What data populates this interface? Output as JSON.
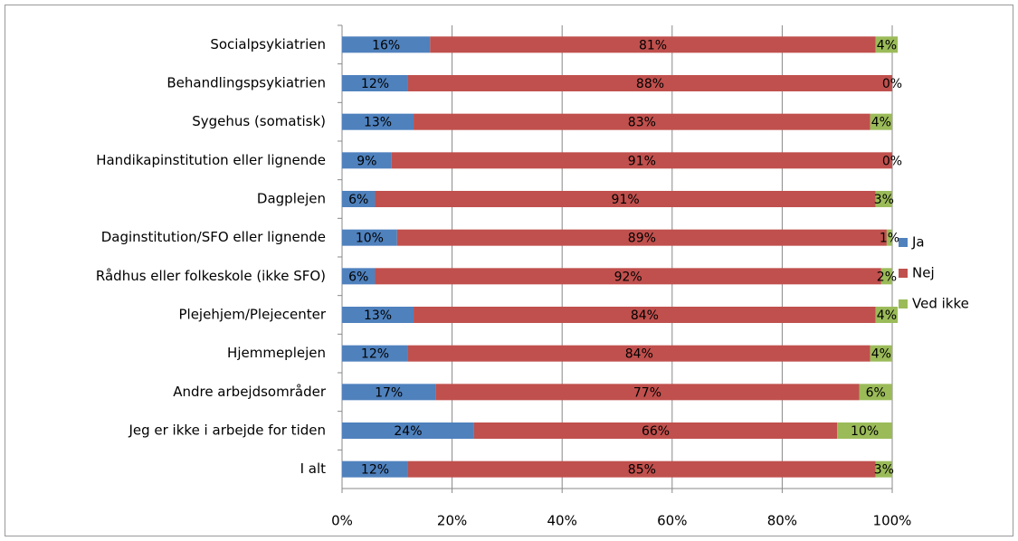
{
  "chart_data": {
    "type": "stacked-bar-horizontal",
    "categories": [
      "Socialpsykiatrien",
      "Behandlingspsykiatrien",
      "Sygehus (somatisk)",
      "Handikapinstitution eller lignende",
      "Dagplejen",
      "Daginstitution/SFO eller lignende",
      "Rådhus eller folkeskole (ikke SFO)",
      "Plejehjem/Plejecenter",
      "Hjemmeplejen",
      "Andre arbejdsområder",
      "Jeg er ikke i arbejde for tiden",
      "I alt"
    ],
    "series": [
      {
        "name": "Ja",
        "color": "#4f81bd",
        "values": [
          16,
          12,
          13,
          9,
          6,
          10,
          6,
          13,
          12,
          17,
          24,
          12
        ],
        "value_labels": [
          "16%",
          "12%",
          "13%",
          "9%",
          "6%",
          "10%",
          "6%",
          "13%",
          "12%",
          "17%",
          "24%",
          "12%"
        ]
      },
      {
        "name": "Nej",
        "color": "#c0504d",
        "values": [
          81,
          88,
          83,
          91,
          91,
          89,
          92,
          84,
          84,
          77,
          66,
          85
        ],
        "value_labels": [
          "81%",
          "88%",
          "83%",
          "91%",
          "91%",
          "89%",
          "92%",
          "84%",
          "84%",
          "77%",
          "66%",
          "85%"
        ]
      },
      {
        "name": "Ved ikke",
        "color": "#9bbb59",
        "values": [
          4,
          0,
          4,
          0,
          3,
          1,
          2,
          4,
          4,
          6,
          10,
          3
        ],
        "value_labels": [
          "4%",
          "0%",
          "4%",
          "0%",
          "3%",
          "1%",
          "2%",
          "4%",
          "4%",
          "6%",
          "10%",
          "3%"
        ]
      }
    ],
    "xlim": [
      0,
      100
    ],
    "xticks": [
      {
        "value": 0,
        "label": "0%"
      },
      {
        "value": 20,
        "label": "20%"
      },
      {
        "value": 40,
        "label": "40%"
      },
      {
        "value": 60,
        "label": "60%"
      },
      {
        "value": 80,
        "label": "80%"
      },
      {
        "value": 100,
        "label": "100%"
      }
    ],
    "grid": true,
    "legend": "right"
  }
}
